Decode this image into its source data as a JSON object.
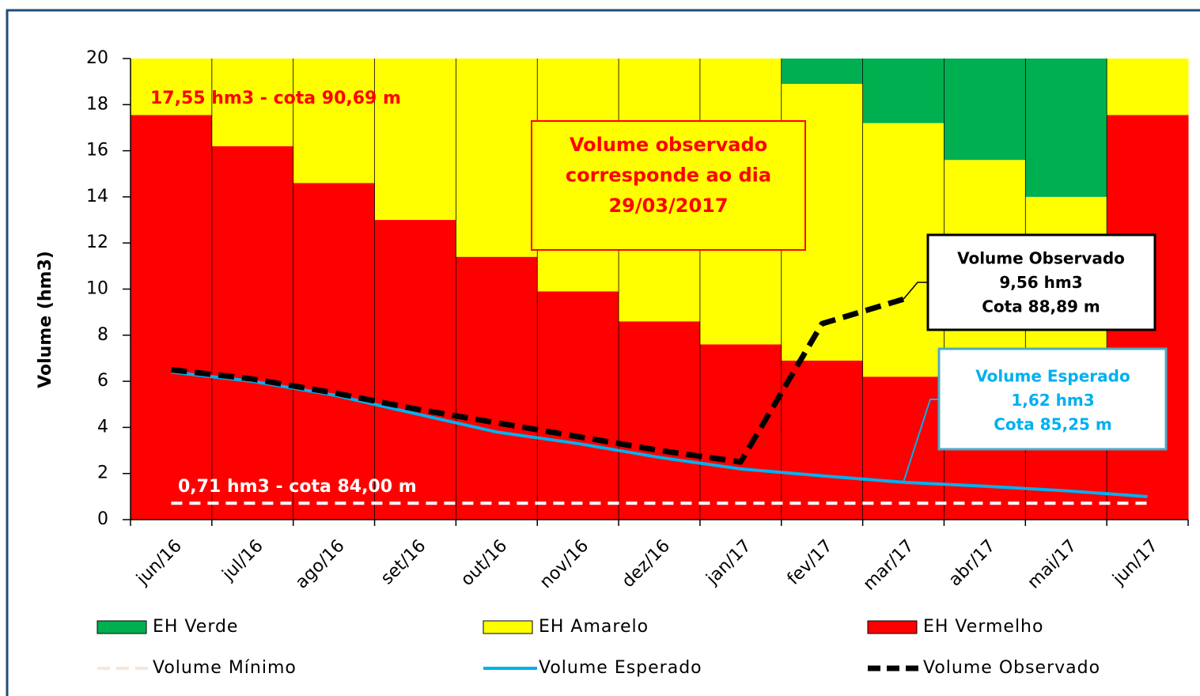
{
  "chart_data": {
    "type": "stacked_bar_line",
    "y_label": "Volume (hm3)",
    "categories": [
      "jun/16",
      "jul/16",
      "ago/16",
      "set/16",
      "out/16",
      "nov/16",
      "dez/16",
      "jan/17",
      "fev/17",
      "mar/17",
      "abr/17",
      "mai/17",
      "jun/17"
    ],
    "ylim": [
      0,
      20
    ],
    "yticks": [
      0,
      2,
      4,
      6,
      8,
      10,
      12,
      14,
      16,
      18,
      20
    ],
    "series": [
      {
        "name": "EH Verde",
        "kind": "bar",
        "color": "#00b050",
        "values": [
          0,
          0,
          0,
          0,
          0,
          0,
          0,
          0,
          1.1,
          2.8,
          4.4,
          6.0,
          0
        ]
      },
      {
        "name": "EH Amarelo",
        "kind": "bar",
        "color": "#ffff00",
        "values": [
          2.45,
          3.8,
          5.4,
          7.0,
          8.6,
          10.1,
          11.4,
          12.4,
          12.0,
          11.0,
          10.0,
          9.0,
          2.45
        ]
      },
      {
        "name": "EH Vermelho",
        "kind": "bar",
        "color": "#ff0000",
        "values": [
          17.55,
          16.2,
          14.6,
          13.0,
          11.4,
          9.9,
          8.6,
          7.6,
          6.9,
          6.2,
          5.6,
          5.0,
          17.55
        ]
      },
      {
        "name": "Volume Mínimo",
        "kind": "line",
        "style": "dashed",
        "color": "#fbe5d6",
        "values": [
          0.71,
          0.71,
          0.71,
          0.71,
          0.71,
          0.71,
          0.71,
          0.71,
          0.71,
          0.71,
          0.71,
          0.71,
          0.71
        ]
      },
      {
        "name": "Volume Esperado",
        "kind": "line",
        "style": "solid",
        "color": "#00b0f0",
        "values": [
          6.4,
          6.0,
          5.4,
          4.6,
          3.8,
          3.3,
          2.7,
          2.2,
          1.9,
          1.62,
          1.45,
          1.25,
          1.0
        ]
      },
      {
        "name": "Volume Observado",
        "kind": "line",
        "style": "dashed",
        "color": "#000000",
        "values": [
          6.5,
          6.1,
          5.5,
          4.8,
          4.2,
          3.6,
          3.0,
          2.5,
          8.5,
          9.56,
          null,
          null,
          null
        ]
      }
    ],
    "annotations": {
      "max_label": "17,55 hm3 - cota 90,69 m",
      "min_label": "0,71 hm3 - cota 84,00 m",
      "note": [
        "Volume observado",
        "corresponde ao dia",
        "29/03/2017"
      ],
      "observed_callout": [
        "Volume Observado",
        "9,56 hm3",
        "Cota 88,89 m"
      ],
      "expected_callout": [
        "Volume Esperado",
        "1,62 hm3",
        "Cota 85,25 m"
      ]
    }
  }
}
